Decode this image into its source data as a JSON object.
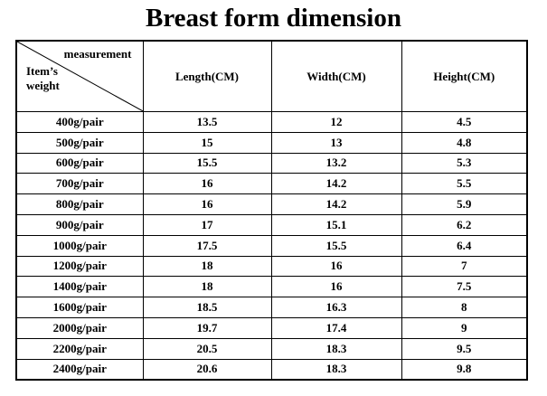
{
  "title": "Breast form dimension",
  "table": {
    "corner_top": "measurement",
    "corner_bottom": "Item’s weight",
    "headers": [
      "Length(CM)",
      "Width(CM)",
      "Height(CM)"
    ],
    "rows": [
      [
        "400g/pair",
        13.5,
        12,
        4.5
      ],
      [
        "500g/pair",
        15,
        13,
        4.8
      ],
      [
        "600g/pair",
        15.5,
        13.2,
        5.3
      ],
      [
        "700g/pair",
        16,
        14.2,
        5.5
      ],
      [
        "800g/pair",
        16,
        14.2,
        5.9
      ],
      [
        "900g/pair",
        17,
        15.1,
        6.2
      ],
      [
        "1000g/pair",
        17.5,
        15.5,
        6.4
      ],
      [
        "1200g/pair",
        18,
        16,
        7
      ],
      [
        "1400g/pair",
        18,
        16,
        7.5
      ],
      [
        "1600g/pair",
        18.5,
        16.3,
        8
      ],
      [
        "2000g/pair",
        19.7,
        17.4,
        9
      ],
      [
        "2200g/pair",
        20.5,
        18.3,
        9.5
      ],
      [
        "2400g/pair",
        20.6,
        18.3,
        9.8
      ]
    ]
  }
}
